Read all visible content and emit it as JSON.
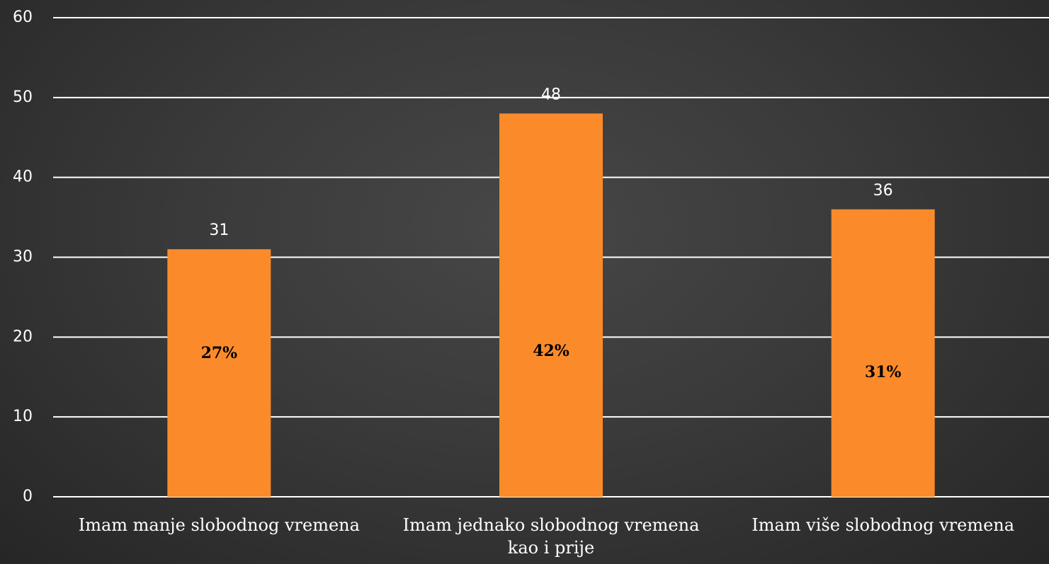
{
  "chart_data": {
    "type": "bar",
    "categories": [
      "Imam manje slobodnog vremena",
      "Imam jednako slobodnog vremena kao i prije",
      "Imam više slobodnog vremena"
    ],
    "values": [
      31,
      48,
      36
    ],
    "annotations": [
      "27%",
      "42%",
      "31%"
    ],
    "color": "#fb8b2a",
    "ylim": [
      0,
      60
    ],
    "yticks": [
      0,
      10,
      20,
      30,
      40,
      50,
      60
    ],
    "grid": true
  }
}
